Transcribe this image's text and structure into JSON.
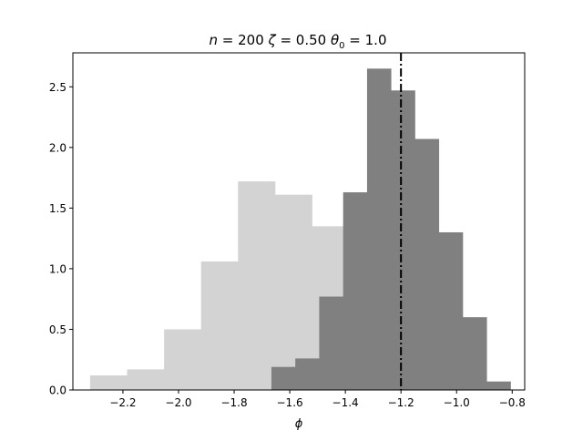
{
  "chart_data": {
    "type": "bar",
    "title": {
      "n_sym": "n",
      "n_rest": " = 200 ",
      "zeta_sym": "ζ",
      "zeta_rest": " = 0.50 ",
      "theta_sym": "θ",
      "theta_sub": "0",
      "theta_rest": " = 1.0"
    },
    "xlabel": "ϕ",
    "ylabel": "",
    "xlim": [
      -2.38,
      -0.755
    ],
    "ylim": [
      0,
      2.78
    ],
    "xticks": [
      -2.2,
      -2.0,
      -1.8,
      -1.6,
      -1.4,
      -1.2,
      -1.0,
      -0.8
    ],
    "xtick_labels": [
      "−2.2",
      "−2.0",
      "−1.8",
      "−1.6",
      "−1.4",
      "−1.2",
      "−1.0",
      "−0.8"
    ],
    "yticks": [
      0.0,
      0.5,
      1.0,
      1.5,
      2.0,
      2.5
    ],
    "ytick_labels": [
      "0.0",
      "0.5",
      "1.0",
      "1.5",
      "2.0",
      "2.5"
    ],
    "grid": false,
    "vline": {
      "x": -1.2,
      "style": "dashdot",
      "color": "#000000"
    },
    "series": [
      {
        "color": "#d3d3d3",
        "bin_edges": [
          -2.318,
          -2.185,
          -2.052,
          -1.919,
          -1.786,
          -1.653,
          -1.52,
          -1.387
        ],
        "values": [
          0.12,
          0.17,
          0.5,
          1.06,
          1.72,
          1.61,
          1.35
        ]
      },
      {
        "color": "#808080",
        "bin_edges": [
          -1.666,
          -1.58,
          -1.494,
          -1.408,
          -1.322,
          -1.236,
          -1.15,
          -1.064,
          -0.978,
          -0.892,
          -0.806
        ],
        "values": [
          0.19,
          0.26,
          0.77,
          1.63,
          2.65,
          2.47,
          2.07,
          1.3,
          0.6,
          0.07
        ]
      }
    ]
  }
}
